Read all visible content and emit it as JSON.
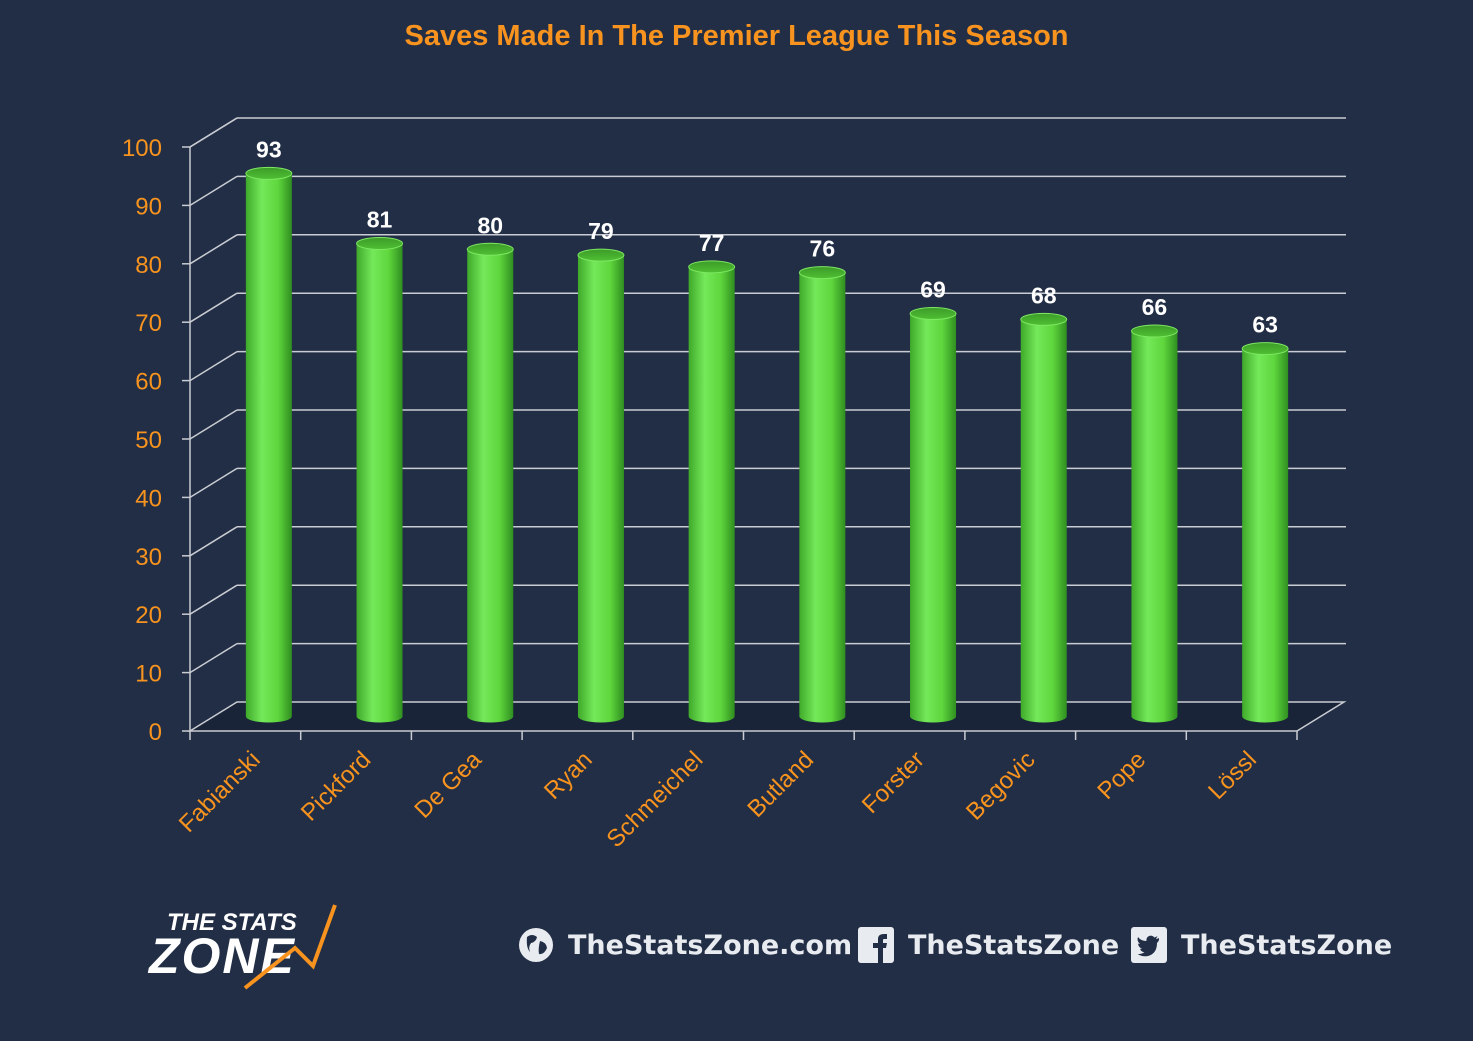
{
  "chart_data": {
    "type": "bar",
    "title": "Saves Made In The Premier League This Season",
    "categories": [
      "Fabianski",
      "Pickford",
      "De Gea",
      "Ryan",
      "Schmeichel",
      "Butland",
      "Forster",
      "Begovic",
      "Pope",
      "Lössl"
    ],
    "values": [
      93,
      81,
      80,
      79,
      77,
      76,
      69,
      68,
      66,
      63
    ],
    "ylim": [
      0,
      100
    ],
    "yticks": [
      0,
      10,
      20,
      30,
      40,
      50,
      60,
      70,
      80,
      90,
      100
    ],
    "xlabel": "",
    "ylabel": "",
    "grid": true,
    "bar_color": "#5ed63c",
    "label_color": "#ffffff",
    "axis_text_color": "#f7931e"
  },
  "footer": {
    "logo_line1": "THE STATS",
    "logo_line2": "ZONE",
    "website": "TheStatsZone.com",
    "facebook": "TheStatsZone",
    "twitter": "TheStatsZone",
    "icons": [
      "globe-icon",
      "facebook-icon",
      "twitter-icon"
    ]
  }
}
